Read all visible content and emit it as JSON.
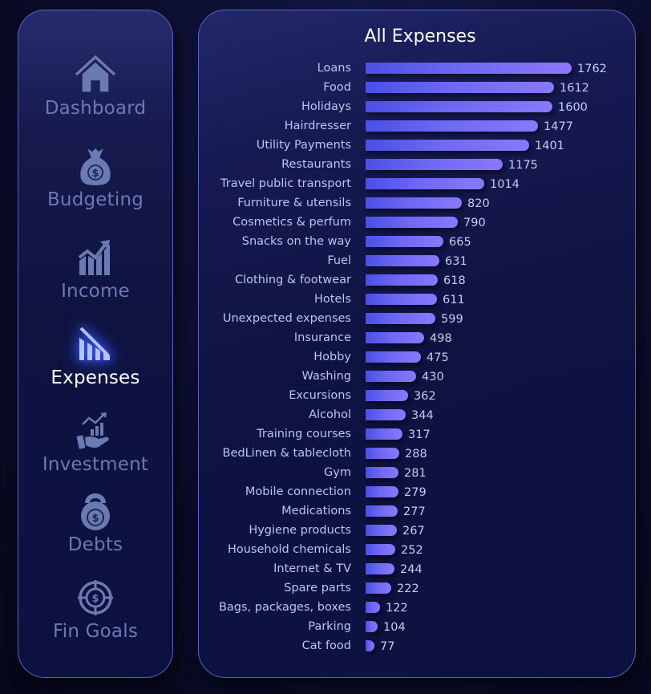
{
  "sidebar": {
    "items": [
      {
        "label": "Dashboard",
        "icon": "home-icon",
        "active": false
      },
      {
        "label": "Budgeting",
        "icon": "money-bag-icon",
        "active": false
      },
      {
        "label": "Income",
        "icon": "chart-up-icon",
        "active": false
      },
      {
        "label": "Expenses",
        "icon": "chart-down-icon",
        "active": true
      },
      {
        "label": "Investment",
        "icon": "hand-growth-icon",
        "active": false
      },
      {
        "label": "Debts",
        "icon": "kettlebell-dollar-icon",
        "active": false
      },
      {
        "label": "Fin Goals",
        "icon": "target-dollar-icon",
        "active": false
      }
    ]
  },
  "colors": {
    "bar_start": "#4a4fe6",
    "bar_end": "#8a78fb",
    "nav_inactive": "#6a7ab3",
    "nav_active": "#ffffff",
    "border": "#5b63c4"
  },
  "chart_data": {
    "type": "bar",
    "orientation": "horizontal",
    "title": "All Expenses",
    "xlabel": "",
    "ylabel": "",
    "grid": false,
    "legend": null,
    "data_labels": true,
    "xlim": [
      0,
      1762
    ],
    "categories": [
      "Loans",
      "Food",
      "Holidays",
      "Hairdresser",
      "Utility Payments",
      "Restaurants",
      "Travel public transport",
      "Furniture & utensils",
      "Cosmetics & perfum",
      "Snacks on the way",
      "Fuel",
      "Clothing & footwear",
      "Hotels",
      "Unexpected expenses",
      "Insurance",
      "Hobby",
      "Washing",
      "Excursions",
      "Alcohol",
      "Training courses",
      "BedLinen & tablecloth",
      "Gym",
      "Mobile connection",
      "Medications",
      "Hygiene products",
      "Household chemicals",
      "Internet & TV",
      "Spare parts",
      "Bags, packages, boxes",
      "Parking",
      "Cat food"
    ],
    "values": [
      1762,
      1612,
      1600,
      1477,
      1401,
      1175,
      1014,
      820,
      790,
      665,
      631,
      618,
      611,
      599,
      498,
      475,
      430,
      362,
      344,
      317,
      288,
      281,
      279,
      277,
      267,
      252,
      244,
      222,
      122,
      104,
      77
    ]
  }
}
